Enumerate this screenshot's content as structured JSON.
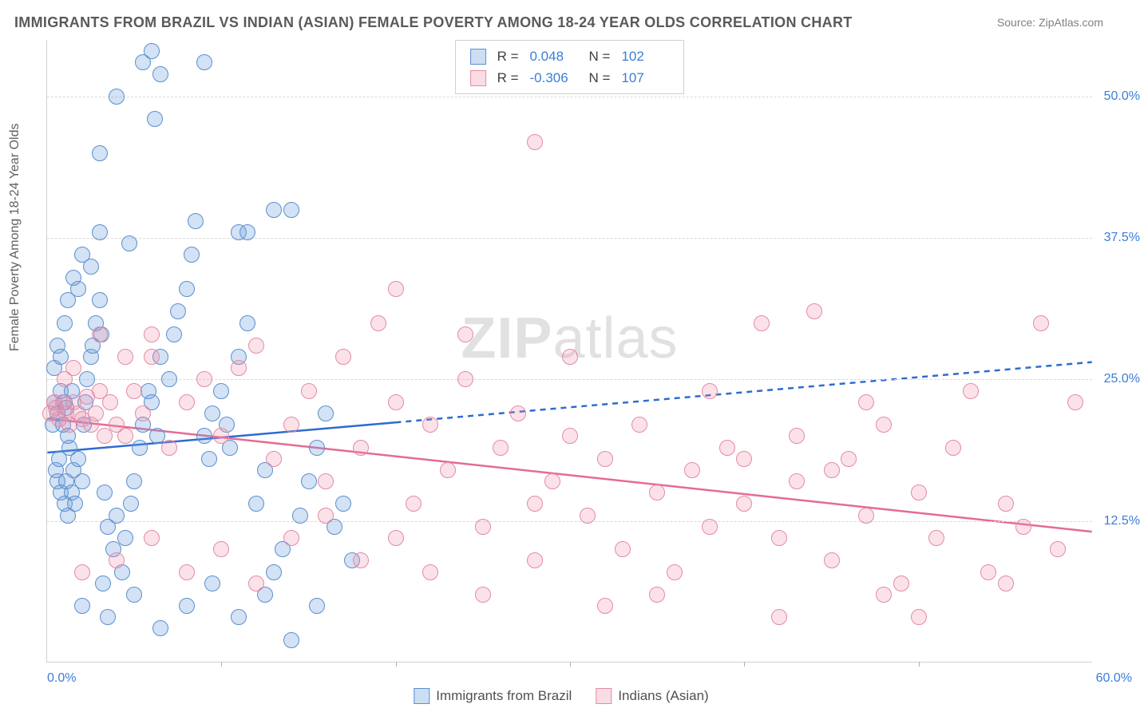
{
  "title": "IMMIGRANTS FROM BRAZIL VS INDIAN (ASIAN) FEMALE POVERTY AMONG 18-24 YEAR OLDS CORRELATION CHART",
  "source": "Source: ZipAtlas.com",
  "watermark_a": "ZIP",
  "watermark_b": "atlas",
  "chart": {
    "type": "scatter",
    "xlim": [
      0,
      60
    ],
    "ylim": [
      0,
      55
    ],
    "x_min_label": "0.0%",
    "x_max_label": "60.0%",
    "x_tick_step": 10,
    "y_ticks": [
      {
        "v": 12.5,
        "label": "12.5%"
      },
      {
        "v": 25.0,
        "label": "25.0%"
      },
      {
        "v": 37.5,
        "label": "37.5%"
      },
      {
        "v": 50.0,
        "label": "50.0%"
      }
    ],
    "ylabel": "Female Poverty Among 18-24 Year Olds",
    "grid_color": "#d8d8d8",
    "background": "#ffffff",
    "marker_radius": 10,
    "series": [
      {
        "key": "blue",
        "name": "Immigrants from Brazil",
        "fill": "rgba(108,160,220,0.30)",
        "stroke": "#5b8fcf",
        "R": "0.048",
        "N": "102",
        "trend": {
          "x1": 0,
          "y1": 18.5,
          "x2": 60,
          "y2": 26.5,
          "solid_until_x": 20,
          "stroke": "#2e6bd0",
          "width": 2.5
        },
        "points": [
          [
            0.3,
            21
          ],
          [
            0.4,
            23
          ],
          [
            0.6,
            22
          ],
          [
            0.8,
            24
          ],
          [
            0.9,
            21
          ],
          [
            1.0,
            23
          ],
          [
            1.1,
            22.5
          ],
          [
            1.2,
            20
          ],
          [
            1.3,
            19
          ],
          [
            1.4,
            24
          ],
          [
            0.5,
            17
          ],
          [
            0.6,
            16
          ],
          [
            0.7,
            18
          ],
          [
            0.8,
            15
          ],
          [
            1.0,
            14
          ],
          [
            1.1,
            16
          ],
          [
            1.2,
            13
          ],
          [
            1.4,
            15
          ],
          [
            1.5,
            17
          ],
          [
            1.6,
            14
          ],
          [
            1.8,
            18
          ],
          [
            2.0,
            16
          ],
          [
            2.1,
            21
          ],
          [
            2.2,
            23
          ],
          [
            2.3,
            25
          ],
          [
            2.5,
            27
          ],
          [
            2.6,
            28
          ],
          [
            2.8,
            30
          ],
          [
            3.0,
            32
          ],
          [
            3.1,
            29
          ],
          [
            0.4,
            26
          ],
          [
            0.6,
            28
          ],
          [
            0.8,
            27
          ],
          [
            1.0,
            30
          ],
          [
            1.2,
            32
          ],
          [
            1.5,
            34
          ],
          [
            1.8,
            33
          ],
          [
            2.0,
            36
          ],
          [
            2.5,
            35
          ],
          [
            3.0,
            38
          ],
          [
            3.3,
            15
          ],
          [
            3.5,
            12
          ],
          [
            3.8,
            10
          ],
          [
            4.0,
            13
          ],
          [
            4.3,
            8
          ],
          [
            4.5,
            11
          ],
          [
            4.8,
            14
          ],
          [
            5.0,
            16
          ],
          [
            5.3,
            19
          ],
          [
            5.5,
            21
          ],
          [
            5.8,
            24
          ],
          [
            6.0,
            23
          ],
          [
            6.3,
            20
          ],
          [
            6.5,
            27
          ],
          [
            7.0,
            25
          ],
          [
            7.3,
            29
          ],
          [
            7.5,
            31
          ],
          [
            8.0,
            33
          ],
          [
            8.3,
            36
          ],
          [
            8.5,
            39
          ],
          [
            9.0,
            20
          ],
          [
            9.3,
            18
          ],
          [
            9.5,
            22
          ],
          [
            10.0,
            24
          ],
          [
            10.3,
            21
          ],
          [
            10.5,
            19
          ],
          [
            11.0,
            27
          ],
          [
            11.5,
            30
          ],
          [
            12.0,
            14
          ],
          [
            12.5,
            17
          ],
          [
            13.0,
            8
          ],
          [
            13.5,
            10
          ],
          [
            14.0,
            40
          ],
          [
            14.5,
            13
          ],
          [
            15.0,
            16
          ],
          [
            15.5,
            19
          ],
          [
            16.0,
            22
          ],
          [
            16.5,
            12
          ],
          [
            17.0,
            14
          ],
          [
            17.5,
            9
          ],
          [
            3.0,
            45
          ],
          [
            4.0,
            50
          ],
          [
            5.5,
            53
          ],
          [
            6.0,
            54
          ],
          [
            6.5,
            52
          ],
          [
            9.0,
            53
          ],
          [
            6.2,
            48
          ],
          [
            11.0,
            38
          ],
          [
            11.5,
            38
          ],
          [
            13.0,
            40
          ],
          [
            2.0,
            5
          ],
          [
            3.5,
            4
          ],
          [
            5.0,
            6
          ],
          [
            6.5,
            3
          ],
          [
            8.0,
            5
          ],
          [
            9.5,
            7
          ],
          [
            11.0,
            4
          ],
          [
            12.5,
            6
          ],
          [
            14.0,
            2
          ],
          [
            15.5,
            5
          ],
          [
            4.7,
            37
          ],
          [
            3.2,
            7
          ]
        ]
      },
      {
        "key": "pink",
        "name": "Indians (Asian)",
        "fill": "rgba(238,140,168,0.25)",
        "stroke": "#e48aa6",
        "R": "-0.306",
        "N": "107",
        "trend": {
          "x1": 0,
          "y1": 21.5,
          "x2": 60,
          "y2": 11.5,
          "solid_until_x": 60,
          "stroke": "#e56b94",
          "width": 2.5
        },
        "points": [
          [
            0.2,
            22
          ],
          [
            0.4,
            23
          ],
          [
            0.5,
            22.5
          ],
          [
            0.7,
            21.5
          ],
          [
            0.9,
            23
          ],
          [
            1.1,
            22
          ],
          [
            1.3,
            21
          ],
          [
            1.5,
            23
          ],
          [
            1.8,
            22
          ],
          [
            2.0,
            21.5
          ],
          [
            2.3,
            23.5
          ],
          [
            2.5,
            21
          ],
          [
            2.8,
            22
          ],
          [
            3.0,
            24
          ],
          [
            3.3,
            20
          ],
          [
            3.6,
            23
          ],
          [
            4.0,
            21
          ],
          [
            4.5,
            20
          ],
          [
            5.0,
            24
          ],
          [
            5.5,
            22
          ],
          [
            6.0,
            27
          ],
          [
            7.0,
            19
          ],
          [
            8.0,
            23
          ],
          [
            9.0,
            25
          ],
          [
            10.0,
            20
          ],
          [
            11.0,
            26
          ],
          [
            12.0,
            28
          ],
          [
            13.0,
            18
          ],
          [
            14.0,
            21
          ],
          [
            15.0,
            24
          ],
          [
            16.0,
            16
          ],
          [
            17.0,
            27
          ],
          [
            18.0,
            19
          ],
          [
            19.0,
            30
          ],
          [
            20.0,
            23
          ],
          [
            21.0,
            14
          ],
          [
            22.0,
            21
          ],
          [
            23.0,
            17
          ],
          [
            24.0,
            25
          ],
          [
            25.0,
            12
          ],
          [
            26.0,
            19
          ],
          [
            27.0,
            22
          ],
          [
            28.0,
            9
          ],
          [
            29.0,
            16
          ],
          [
            30.0,
            20
          ],
          [
            31.0,
            13
          ],
          [
            32.0,
            18
          ],
          [
            33.0,
            10
          ],
          [
            34.0,
            21
          ],
          [
            35.0,
            15
          ],
          [
            36.0,
            8
          ],
          [
            37.0,
            17
          ],
          [
            38.0,
            12
          ],
          [
            39.0,
            19
          ],
          [
            40.0,
            14
          ],
          [
            41.0,
            30
          ],
          [
            42.0,
            11
          ],
          [
            43.0,
            16
          ],
          [
            44.0,
            31
          ],
          [
            45.0,
            9
          ],
          [
            46.0,
            18
          ],
          [
            47.0,
            13
          ],
          [
            48.0,
            21
          ],
          [
            49.0,
            7
          ],
          [
            50.0,
            15
          ],
          [
            51.0,
            11
          ],
          [
            52.0,
            19
          ],
          [
            53.0,
            24
          ],
          [
            54.0,
            8
          ],
          [
            55.0,
            14
          ],
          [
            56.0,
            12
          ],
          [
            57.0,
            30
          ],
          [
            58.0,
            10
          ],
          [
            59.0,
            23
          ],
          [
            28.0,
            46
          ],
          [
            20.0,
            33
          ],
          [
            24.0,
            29
          ],
          [
            30.0,
            27
          ],
          [
            48.0,
            6
          ],
          [
            50.0,
            4
          ],
          [
            55.0,
            7
          ],
          [
            45.0,
            17
          ],
          [
            43.0,
            20
          ],
          [
            40.0,
            18
          ],
          [
            38.0,
            24
          ],
          [
            35.0,
            6
          ],
          [
            32.0,
            5
          ],
          [
            28.0,
            14
          ],
          [
            25.0,
            6
          ],
          [
            22.0,
            8
          ],
          [
            20.0,
            11
          ],
          [
            18.0,
            9
          ],
          [
            16.0,
            13
          ],
          [
            14.0,
            11
          ],
          [
            12.0,
            7
          ],
          [
            10.0,
            10
          ],
          [
            8.0,
            8
          ],
          [
            6.0,
            11
          ],
          [
            4.0,
            9
          ],
          [
            2.0,
            8
          ],
          [
            1.0,
            25
          ],
          [
            1.5,
            26
          ],
          [
            3.0,
            29
          ],
          [
            4.5,
            27
          ],
          [
            6.0,
            29
          ],
          [
            42.0,
            4
          ],
          [
            47.0,
            23
          ]
        ]
      }
    ],
    "legend": {
      "R_label": "R =",
      "N_label": "N ="
    }
  }
}
